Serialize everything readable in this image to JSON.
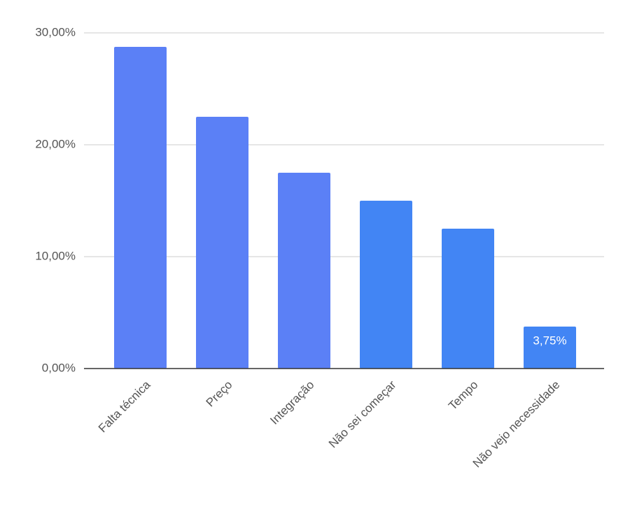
{
  "chart_data": {
    "type": "bar",
    "categories": [
      "Falta técnica",
      "Preço",
      "Integração",
      "Não sei começar",
      "Tempo",
      "Não vejo necessidade"
    ],
    "values": [
      28.75,
      22.5,
      17.5,
      15,
      12.5,
      3.75
    ],
    "value_labels": [
      null,
      null,
      null,
      null,
      null,
      "3,75%"
    ],
    "colors": [
      "#5b80f6",
      "#5b80f6",
      "#5b80f6",
      "#4285f4",
      "#4285f4",
      "#4285f4"
    ],
    "ylim": [
      0,
      30
    ],
    "yticks": [
      {
        "value": 0,
        "label": "0,00%"
      },
      {
        "value": 10,
        "label": "10,00%"
      },
      {
        "value": 20,
        "label": "20,00%"
      },
      {
        "value": 30,
        "label": "30,00%"
      }
    ],
    "grid": true
  }
}
